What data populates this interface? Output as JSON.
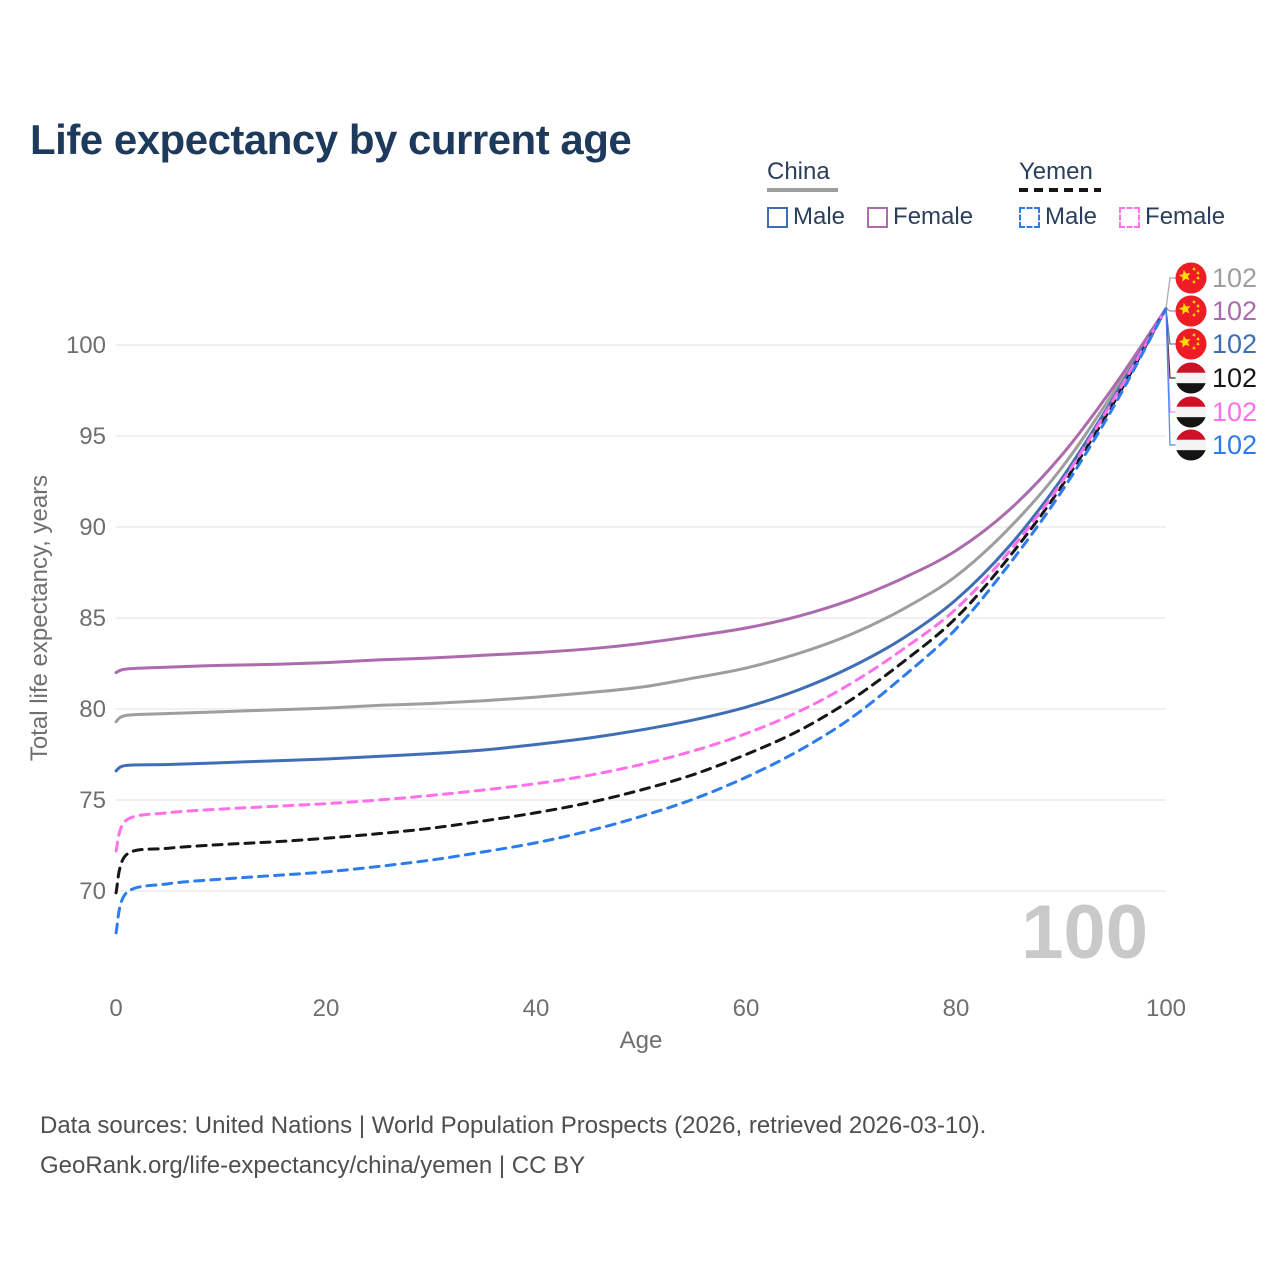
{
  "title": "Life expectancy by current age",
  "legend": {
    "groups": [
      {
        "label": "China",
        "line_style": "solid",
        "items": [
          {
            "label": "Male"
          },
          {
            "label": "Female"
          }
        ]
      },
      {
        "label": "Yemen",
        "line_style": "dashed",
        "items": [
          {
            "label": "Male"
          },
          {
            "label": "Female"
          }
        ]
      }
    ]
  },
  "watermark_age_counter": "100",
  "colors": {
    "title_text": "#1d3a5c",
    "legend_text": "#2b3f5c",
    "axis_text": "#6f6f6f",
    "gridline": "#e8e8e8",
    "watermark": "#c9c9c9",
    "footer_text": "#4f4f4f",
    "china_flag_red": "#ee1c25",
    "china_flag_star": "#ffde00",
    "yemen_flag_red": "#ce1126",
    "yemen_flag_white": "#f4f4f4",
    "yemen_flag_black": "#141414"
  },
  "chart_data": {
    "type": "line",
    "title": "Life expectancy by current age",
    "xlabel": "Age",
    "ylabel": "Total life expectancy, years",
    "x_ticks": [
      0,
      20,
      40,
      60,
      80,
      100
    ],
    "y_ticks": [
      70,
      75,
      80,
      85,
      90,
      95,
      100
    ],
    "xlim": [
      0,
      100
    ],
    "ylim": [
      67.5,
      102
    ],
    "grid": true,
    "legend_position": "top-right",
    "ages": [
      0,
      1,
      5,
      10,
      15,
      20,
      25,
      30,
      35,
      40,
      45,
      50,
      55,
      60,
      65,
      70,
      75,
      80,
      85,
      90,
      95,
      100
    ],
    "series": [
      {
        "name": "China (both sexes)",
        "country": "China",
        "sex": "all",
        "color": "#9e9e9e",
        "dash": false,
        "flag": "china",
        "end_label": "102",
        "values": [
          79.3,
          79.65,
          79.75,
          79.85,
          79.95,
          80.05,
          80.2,
          80.3,
          80.45,
          80.65,
          80.9,
          81.2,
          81.7,
          82.25,
          83.05,
          84.1,
          85.5,
          87.3,
          89.9,
          93.2,
          97.4,
          102
        ]
      },
      {
        "name": "China Female",
        "country": "China",
        "sex": "female",
        "color": "#ac6bad",
        "dash": false,
        "flag": "china",
        "end_label": "102",
        "values": [
          82.0,
          82.2,
          82.3,
          82.4,
          82.45,
          82.55,
          82.7,
          82.8,
          82.95,
          83.1,
          83.3,
          83.6,
          84.0,
          84.45,
          85.1,
          86.0,
          87.2,
          88.7,
          90.9,
          93.9,
          97.7,
          102
        ]
      },
      {
        "name": "China Male",
        "country": "China",
        "sex": "male",
        "color": "#3f6eb5",
        "dash": false,
        "flag": "china",
        "end_label": "102",
        "values": [
          76.6,
          76.9,
          76.95,
          77.05,
          77.15,
          77.25,
          77.4,
          77.55,
          77.75,
          78.05,
          78.4,
          78.85,
          79.4,
          80.1,
          81.05,
          82.3,
          83.9,
          86.0,
          88.9,
          92.6,
          97.1,
          102
        ]
      },
      {
        "name": "Yemen (both sexes)",
        "country": "Yemen",
        "sex": "all",
        "color": "#161616",
        "dash": true,
        "flag": "yemen",
        "end_label": "102",
        "values": [
          69.9,
          72.0,
          72.35,
          72.55,
          72.7,
          72.9,
          73.15,
          73.45,
          73.85,
          74.3,
          74.85,
          75.55,
          76.4,
          77.5,
          78.8,
          80.5,
          82.6,
          85.0,
          88.3,
          92.2,
          96.8,
          102
        ]
      },
      {
        "name": "Yemen Female",
        "country": "Yemen",
        "sex": "female",
        "color": "#ff70e9",
        "dash": true,
        "flag": "yemen",
        "end_label": "102",
        "values": [
          72.2,
          73.9,
          74.3,
          74.5,
          74.65,
          74.8,
          75.0,
          75.25,
          75.55,
          75.9,
          76.35,
          76.95,
          77.7,
          78.65,
          79.85,
          81.4,
          83.3,
          85.5,
          88.6,
          92.4,
          97.0,
          102
        ]
      },
      {
        "name": "Yemen Male",
        "country": "Yemen",
        "sex": "male",
        "color": "#2e7cec",
        "dash": true,
        "flag": "yemen",
        "end_label": "102",
        "values": [
          67.7,
          69.9,
          70.4,
          70.65,
          70.85,
          71.05,
          71.35,
          71.7,
          72.15,
          72.65,
          73.3,
          74.1,
          75.05,
          76.25,
          77.7,
          79.5,
          81.8,
          84.4,
          87.9,
          91.9,
          96.6,
          102
        ]
      }
    ]
  },
  "footer": {
    "line1": "Data sources: United Nations | World Population Prospects (2026, retrieved 2026-03-10).",
    "line2": "GeoRank.org/life-expectancy/china/yemen | CC BY"
  }
}
